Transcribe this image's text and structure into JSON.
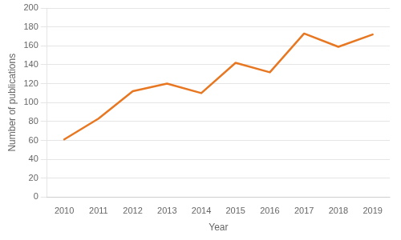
{
  "chart_data": {
    "type": "line",
    "categories": [
      "2010",
      "2011",
      "2012",
      "2013",
      "2014",
      "2015",
      "2016",
      "2017",
      "2018",
      "2019"
    ],
    "values": [
      61,
      83,
      112,
      120,
      110,
      142,
      132,
      173,
      159,
      172
    ],
    "color": "#E87722",
    "xlabel": "Year",
    "ylabel": "Number of publications",
    "ylim": [
      0,
      200
    ],
    "yticks": [
      0,
      20,
      40,
      60,
      80,
      100,
      120,
      140,
      160,
      180,
      200
    ],
    "grid": "y"
  }
}
